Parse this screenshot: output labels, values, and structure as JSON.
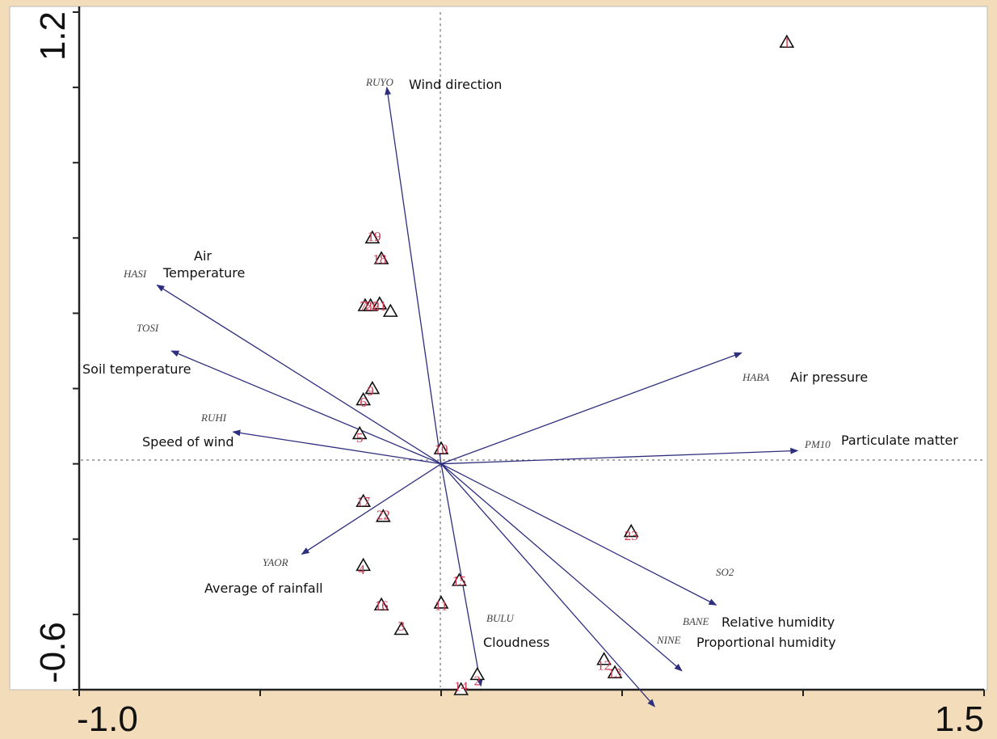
{
  "chart_data": {
    "type": "scatter",
    "title": "",
    "xlabel": "",
    "ylabel": "",
    "xlim": [
      -1.0,
      1.5
    ],
    "ylim": [
      -0.6,
      1.2
    ],
    "x_ticks": [
      -1.0,
      1.5
    ],
    "y_ticks": [
      1.2,
      -0.6
    ],
    "tick_labels": {
      "xmin": "-1.0",
      "xmax": "1.5",
      "ytop": "1.2",
      "ybottom": "-0.6"
    },
    "grid": false,
    "origin_lines": true,
    "colors": {
      "vector": "#2e2e7e",
      "site_label": "#d03a55",
      "marker": "#111111",
      "background": "#ffffff",
      "frame": "#f2dcb9"
    },
    "vectors": [
      {
        "code": "RUYO",
        "name": "Wind direction",
        "x": -0.15,
        "y": 1.0
      },
      {
        "code": "HASI",
        "name": "Air Temperature",
        "x": -0.785,
        "y": 0.475
      },
      {
        "code": "TOSI",
        "name": "Soil temperature",
        "x": -0.745,
        "y": 0.3
      },
      {
        "code": "RUHI",
        "name": "Speed of wind",
        "x": -0.575,
        "y": 0.085
      },
      {
        "code": "HABA",
        "name": "Air pressure",
        "x": 0.83,
        "y": 0.295
      },
      {
        "code": "PM10",
        "name": "Particulate matter",
        "x": 0.985,
        "y": 0.035
      },
      {
        "code": "YAOR",
        "name": "Average of rainfall",
        "x": -0.385,
        "y": -0.24
      },
      {
        "code": "BULU",
        "name": "Cloudness",
        "x": 0.11,
        "y": -0.59
      },
      {
        "code": "SO2",
        "name": "",
        "x": 0.76,
        "y": -0.375
      },
      {
        "code": "BANE",
        "name": "Relative humidity",
        "x": 0.665,
        "y": -0.55
      },
      {
        "code": "NINE",
        "name": "Proportional humidity",
        "x": 0.59,
        "y": -0.645
      }
    ],
    "sites": [
      {
        "label": "1",
        "x": 0.955,
        "y": 1.12
      },
      {
        "label": "2",
        "x": 0.1,
        "y": -0.575
      },
      {
        "label": "3",
        "x": -0.11,
        "y": -0.43
      },
      {
        "label": "4",
        "x": -0.22,
        "y": -0.28
      },
      {
        "label": "5",
        "x": -0.225,
        "y": 0.07
      },
      {
        "label": "6",
        "x": -0.215,
        "y": 0.165
      },
      {
        "label": "7",
        "x": -0.215,
        "y": 0.42
      },
      {
        "label": "8",
        "x": -0.2,
        "y": 0.42
      },
      {
        "label": "9",
        "x": -0.195,
        "y": 0.195
      },
      {
        "label": "10",
        "x": 0.0,
        "y": 0.04
      },
      {
        "label": "11",
        "x": 0.0,
        "y": -0.375
      },
      {
        "label": "12",
        "x": 0.45,
        "y": -0.535
      },
      {
        "label": "13",
        "x": 0.48,
        "y": -0.555
      },
      {
        "label": "14",
        "x": 0.055,
        "y": -0.59
      },
      {
        "label": "15",
        "x": 0.05,
        "y": -0.31
      },
      {
        "label": "16",
        "x": -0.165,
        "y": -0.375
      },
      {
        "label": "17",
        "x": -0.215,
        "y": -0.1
      },
      {
        "label": "18",
        "x": -0.17,
        "y": 0.545
      },
      {
        "label": "19",
        "x": -0.185,
        "y": 0.605
      },
      {
        "label": "20",
        "x": -0.19,
        "y": 0.42
      },
      {
        "label": "21",
        "x": -0.17,
        "y": 0.42
      },
      {
        "label": "22",
        "x": -0.16,
        "y": -0.135
      },
      {
        "label": "23",
        "x": 0.525,
        "y": -0.19
      }
    ],
    "markers": [
      {
        "x": 0.955,
        "y": 1.12
      },
      {
        "x": -0.19,
        "y": 0.6
      },
      {
        "x": -0.165,
        "y": 0.545
      },
      {
        "x": -0.21,
        "y": 0.42
      },
      {
        "x": -0.195,
        "y": 0.42
      },
      {
        "x": -0.17,
        "y": 0.425
      },
      {
        "x": -0.14,
        "y": 0.405
      },
      {
        "x": -0.19,
        "y": 0.2
      },
      {
        "x": -0.215,
        "y": 0.17
      },
      {
        "x": -0.225,
        "y": 0.08
      },
      {
        "x": 0.0,
        "y": 0.04
      },
      {
        "x": -0.215,
        "y": -0.1
      },
      {
        "x": -0.16,
        "y": -0.14
      },
      {
        "x": -0.215,
        "y": -0.27
      },
      {
        "x": -0.165,
        "y": -0.375
      },
      {
        "x": -0.11,
        "y": -0.44
      },
      {
        "x": 0.0,
        "y": -0.37
      },
      {
        "x": 0.05,
        "y": -0.31
      },
      {
        "x": 0.1,
        "y": -0.56
      },
      {
        "x": 0.055,
        "y": -0.6
      },
      {
        "x": 0.45,
        "y": -0.52
      },
      {
        "x": 0.48,
        "y": -0.555
      },
      {
        "x": 0.525,
        "y": -0.18
      }
    ]
  }
}
